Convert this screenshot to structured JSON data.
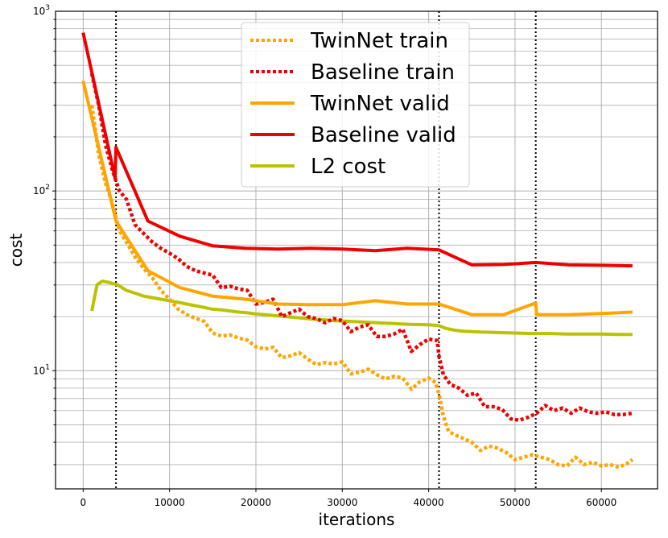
{
  "chart_data": {
    "type": "line",
    "xlabel": "iterations",
    "ylabel": "cost",
    "xlim": [
      -3200,
      66500
    ],
    "ylim": [
      2.2,
      1000
    ],
    "yscale": "log",
    "grid": true,
    "x_ticks": [
      0,
      10000,
      20000,
      30000,
      40000,
      50000,
      60000
    ],
    "x_tick_labels": [
      "0",
      "10000",
      "20000",
      "30000",
      "40000",
      "50000",
      "60000"
    ],
    "y_ticks": [
      {
        "value": 10,
        "base": "10",
        "exp": "1"
      },
      {
        "value": 100,
        "base": "10",
        "exp": "2"
      },
      {
        "value": 1000,
        "base": "10",
        "exp": "3"
      }
    ],
    "vlines": [
      3800,
      41200,
      52400
    ],
    "legend_position": "top-center",
    "series": [
      {
        "name": "TwinNet train",
        "color": "#ffa500",
        "style": "dotted",
        "points": [
          [
            1000,
            300
          ],
          [
            1800,
            160
          ],
          [
            2600,
            110
          ],
          [
            3400,
            85
          ],
          [
            4200,
            60
          ],
          [
            5000,
            52
          ],
          [
            6000,
            43
          ],
          [
            7000,
            37
          ],
          [
            8000,
            33
          ],
          [
            9000,
            28
          ],
          [
            10000,
            25
          ],
          [
            11000,
            22
          ],
          [
            12000,
            20.5
          ],
          [
            13000,
            19.6
          ],
          [
            14000,
            18.8
          ],
          [
            15000,
            16.2
          ],
          [
            16000,
            15.6
          ],
          [
            17000,
            15.8
          ],
          [
            18000,
            15.2
          ],
          [
            19000,
            14.8
          ],
          [
            20000,
            13.6
          ],
          [
            21000,
            13.2
          ],
          [
            22000,
            13.5
          ],
          [
            23000,
            11.8
          ],
          [
            24000,
            12.1
          ],
          [
            25000,
            12.6
          ],
          [
            26000,
            11.6
          ],
          [
            27000,
            10.8
          ],
          [
            28000,
            11.1
          ],
          [
            29000,
            10.9
          ],
          [
            30000,
            11.2
          ],
          [
            31000,
            9.6
          ],
          [
            32000,
            9.8
          ],
          [
            33000,
            10.2
          ],
          [
            34000,
            9.5
          ],
          [
            35000,
            9.0
          ],
          [
            36000,
            9.3
          ],
          [
            37000,
            9.1
          ],
          [
            38000,
            7.9
          ],
          [
            39000,
            8.7
          ],
          [
            40000,
            9.1
          ],
          [
            40800,
            8.6
          ],
          [
            41200,
            7.4
          ],
          [
            41700,
            5.6
          ],
          [
            42300,
            4.6
          ],
          [
            43000,
            4.4
          ],
          [
            44000,
            4.2
          ],
          [
            45000,
            4.0
          ],
          [
            46000,
            3.6
          ],
          [
            47000,
            3.8
          ],
          [
            48000,
            3.7
          ],
          [
            49000,
            3.5
          ],
          [
            50000,
            3.2
          ],
          [
            51000,
            3.3
          ],
          [
            52000,
            3.4
          ],
          [
            53000,
            3.3
          ],
          [
            54000,
            3.2
          ],
          [
            55000,
            3.0
          ],
          [
            56000,
            2.95
          ],
          [
            57000,
            3.3
          ],
          [
            58000,
            3.0
          ],
          [
            59000,
            3.1
          ],
          [
            60000,
            2.95
          ],
          [
            61000,
            3.0
          ],
          [
            62000,
            2.9
          ],
          [
            63000,
            3.05
          ],
          [
            63600,
            3.2
          ]
        ]
      },
      {
        "name": "Baseline train",
        "color": "#ee0000",
        "style": "dotted",
        "points": [
          [
            1000,
            450
          ],
          [
            1800,
            300
          ],
          [
            2600,
            180
          ],
          [
            3400,
            130
          ],
          [
            4200,
            100
          ],
          [
            5000,
            90
          ],
          [
            6000,
            65
          ],
          [
            7000,
            58
          ],
          [
            8000,
            52
          ],
          [
            9000,
            48
          ],
          [
            10000,
            45
          ],
          [
            11000,
            42
          ],
          [
            12000,
            38
          ],
          [
            13000,
            36
          ],
          [
            14000,
            35
          ],
          [
            15000,
            34
          ],
          [
            16000,
            29
          ],
          [
            17000,
            29.5
          ],
          [
            18000,
            28.5
          ],
          [
            19000,
            28
          ],
          [
            20000,
            23.5
          ],
          [
            21000,
            24
          ],
          [
            22000,
            25
          ],
          [
            23000,
            20
          ],
          [
            24000,
            21
          ],
          [
            25000,
            22
          ],
          [
            26000,
            20
          ],
          [
            27000,
            19.5
          ],
          [
            28000,
            18.5
          ],
          [
            29000,
            19.5
          ],
          [
            30000,
            19
          ],
          [
            31000,
            16.5
          ],
          [
            32000,
            17.5
          ],
          [
            33000,
            18
          ],
          [
            34000,
            15.5
          ],
          [
            35000,
            15.5
          ],
          [
            36000,
            16
          ],
          [
            37000,
            17
          ],
          [
            38000,
            12.8
          ],
          [
            39000,
            14
          ],
          [
            40000,
            15
          ],
          [
            41000,
            14.7
          ],
          [
            41200,
            12
          ],
          [
            41700,
            9.5
          ],
          [
            42500,
            8.4
          ],
          [
            43500,
            8.0
          ],
          [
            44500,
            7.3
          ],
          [
            45500,
            7.5
          ],
          [
            46500,
            6.3
          ],
          [
            47500,
            6.3
          ],
          [
            48500,
            6.1
          ],
          [
            49500,
            5.4
          ],
          [
            50500,
            5.3
          ],
          [
            51500,
            5.5
          ],
          [
            52500,
            5.8
          ],
          [
            53500,
            6.4
          ],
          [
            54500,
            6.0
          ],
          [
            55500,
            6.2
          ],
          [
            56500,
            5.8
          ],
          [
            57500,
            6.2
          ],
          [
            58500,
            5.9
          ],
          [
            59500,
            5.8
          ],
          [
            60500,
            5.9
          ],
          [
            61500,
            5.7
          ],
          [
            62500,
            5.7
          ],
          [
            63600,
            5.8
          ]
        ]
      },
      {
        "name": "TwinNet valid",
        "color": "#ffa500",
        "style": "solid",
        "points": [
          [
            0,
            410
          ],
          [
            3800,
            68
          ],
          [
            7500,
            36
          ],
          [
            11200,
            29
          ],
          [
            15000,
            26
          ],
          [
            18800,
            25
          ],
          [
            22500,
            23.5
          ],
          [
            26300,
            23.3
          ],
          [
            30000,
            23.3
          ],
          [
            33800,
            24.5
          ],
          [
            37500,
            23.5
          ],
          [
            41200,
            23.5
          ],
          [
            45000,
            20.5
          ],
          [
            48700,
            20.5
          ],
          [
            52400,
            23.8
          ],
          [
            52500,
            20.5
          ],
          [
            56200,
            20.5
          ],
          [
            60000,
            20.8
          ],
          [
            63600,
            21.2
          ]
        ]
      },
      {
        "name": "Baseline valid",
        "color": "#ee0000",
        "style": "solid",
        "points": [
          [
            0,
            760
          ],
          [
            3700,
            118
          ],
          [
            3800,
            175
          ],
          [
            7500,
            68
          ],
          [
            11200,
            56
          ],
          [
            15000,
            49.5
          ],
          [
            18800,
            48
          ],
          [
            22500,
            47.5
          ],
          [
            26300,
            48
          ],
          [
            30000,
            47.5
          ],
          [
            33800,
            46.5
          ],
          [
            37500,
            48
          ],
          [
            41200,
            47
          ],
          [
            45000,
            38.8
          ],
          [
            48700,
            39
          ],
          [
            52400,
            40
          ],
          [
            56200,
            38.8
          ],
          [
            60000,
            38.6
          ],
          [
            63600,
            38.3
          ]
        ]
      },
      {
        "name": "L2 cost",
        "color": "#bbc200",
        "style": "solid",
        "points": [
          [
            1000,
            21.5
          ],
          [
            1600,
            30
          ],
          [
            2200,
            31.5
          ],
          [
            3000,
            31
          ],
          [
            4000,
            30
          ],
          [
            5000,
            28
          ],
          [
            6000,
            27
          ],
          [
            7000,
            26
          ],
          [
            8000,
            25.5
          ],
          [
            9000,
            25
          ],
          [
            10000,
            24.5
          ],
          [
            11000,
            24
          ],
          [
            12000,
            23.5
          ],
          [
            13000,
            23
          ],
          [
            14000,
            22.5
          ],
          [
            15000,
            22
          ],
          [
            16000,
            21.8
          ],
          [
            17000,
            21.5
          ],
          [
            18000,
            21.2
          ],
          [
            19000,
            21
          ],
          [
            20000,
            20.7
          ],
          [
            21000,
            20.5
          ],
          [
            22000,
            20.3
          ],
          [
            23000,
            20.1
          ],
          [
            24000,
            19.9
          ],
          [
            25000,
            19.7
          ],
          [
            26000,
            19.5
          ],
          [
            27000,
            19.3
          ],
          [
            28000,
            19.2
          ],
          [
            29000,
            19.0
          ],
          [
            30000,
            18.9
          ],
          [
            32000,
            18.7
          ],
          [
            34000,
            18.5
          ],
          [
            36000,
            18.3
          ],
          [
            38000,
            18.1
          ],
          [
            40000,
            18.0
          ],
          [
            41200,
            17.8
          ],
          [
            42000,
            17.2
          ],
          [
            43000,
            16.8
          ],
          [
            44000,
            16.6
          ],
          [
            46000,
            16.4
          ],
          [
            48000,
            16.3
          ],
          [
            50000,
            16.2
          ],
          [
            52000,
            16.1
          ],
          [
            54000,
            16.1
          ],
          [
            56000,
            16.0
          ],
          [
            58000,
            16.0
          ],
          [
            60000,
            16.0
          ],
          [
            62000,
            15.9
          ],
          [
            63600,
            15.9
          ]
        ]
      }
    ]
  }
}
